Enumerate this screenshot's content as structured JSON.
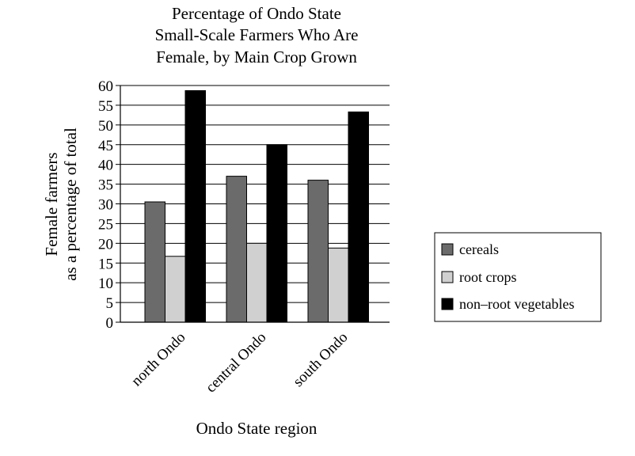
{
  "chart_data": {
    "type": "bar",
    "title_lines": [
      "Percentage of Ondo State",
      "Small-Scale Farmers Who Are",
      "Female, by Main Crop Grown"
    ],
    "ylabel_lines": [
      "Female farmers",
      "as a percentage of total"
    ],
    "xlabel": "Ondo State region",
    "categories": [
      "north Ondo",
      "central Ondo",
      "south Ondo"
    ],
    "ylim": [
      0,
      60
    ],
    "ytick_step": 5,
    "grid": true,
    "legend_position": "right",
    "series": [
      {
        "name": "cereals",
        "values": [
          30.5,
          37,
          36
        ],
        "color": "#6b6b6b"
      },
      {
        "name": "root crops",
        "values": [
          16.7,
          20,
          18.8
        ],
        "color": "#d0d0d0"
      },
      {
        "name": "non–root vegetables",
        "values": [
          58.7,
          45,
          53.3
        ],
        "color": "#000000"
      }
    ]
  }
}
